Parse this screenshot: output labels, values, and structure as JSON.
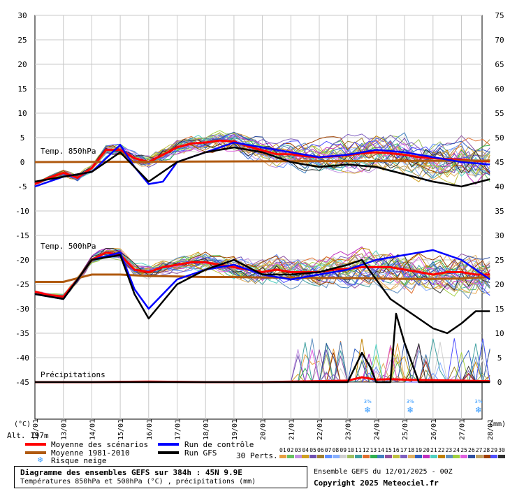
{
  "chart_data": {
    "type": "line",
    "left_axis": {
      "unit_label": "(°C)",
      "range": [
        -45,
        30
      ],
      "ticks": [
        30,
        25,
        20,
        15,
        10,
        5,
        0,
        -5,
        -10,
        -15,
        -20,
        -25,
        -30,
        -35,
        -40,
        -45
      ]
    },
    "right_axis": {
      "unit_label": "(mm)",
      "range": [
        0,
        75
      ],
      "ticks": [
        75,
        70,
        65,
        60,
        55,
        50,
        45,
        40,
        35,
        30,
        25,
        20,
        15,
        10,
        5,
        0
      ]
    },
    "x_dates": [
      "13/01",
      "14/01",
      "15/01",
      "16/01",
      "17/01",
      "18/01",
      "19/01",
      "20/01",
      "21/01",
      "22/01",
      "23/01",
      "24/01",
      "25/01",
      "26/01",
      "27/01",
      "28/01"
    ],
    "left_edge_date": "12/01",
    "panel_labels": {
      "t850": "Temp. 850hPa",
      "t500": "Temp. 500hPa",
      "precip": "Précipitations"
    },
    "grid": true,
    "series": [
      {
        "name": "Moyenne des scénarios",
        "panel": "t850",
        "color": "#ff0000",
        "x_days": [
          0,
          0.5,
          1,
          1.5,
          2,
          2.5,
          3,
          3.5,
          4,
          4.5,
          5,
          5.5,
          6,
          6.5,
          7,
          7.5,
          8,
          8.5,
          9,
          9.5,
          10,
          10.5,
          11,
          11.5,
          12,
          12.5,
          13,
          13.5,
          14,
          14.5,
          15,
          15.5,
          16
        ],
        "values": [
          -4.5,
          -3.2,
          -2.2,
          -3.2,
          -1.2,
          2.5,
          2.5,
          0.8,
          0,
          1.5,
          3,
          3.8,
          4,
          4.4,
          4.2,
          3.2,
          2.4,
          1.6,
          1.6,
          1.2,
          1,
          1.2,
          1.4,
          1.8,
          2,
          1.8,
          1.5,
          1,
          0.8,
          0.6,
          0.5,
          0.2,
          0.2
        ]
      },
      {
        "name": "Moyenne des scénarios",
        "panel": "t500",
        "color": "#ff0000",
        "x_days": [
          0,
          0.5,
          1,
          1.5,
          2,
          2.5,
          3,
          3.5,
          4,
          4.5,
          5,
          5.5,
          6,
          6.5,
          7,
          7.5,
          8,
          8.5,
          9,
          9.5,
          10,
          10.5,
          11,
          11.5,
          12,
          12.5,
          13,
          13.5,
          14,
          14.5,
          15,
          15.5,
          16
        ],
        "values": [
          -26.5,
          -27.2,
          -27.5,
          -24,
          -20,
          -18.5,
          -19,
          -22,
          -22.5,
          -21.5,
          -21,
          -20.5,
          -20.5,
          -21,
          -21.5,
          -22,
          -22.5,
          -22,
          -22.5,
          -22.5,
          -22.5,
          -22,
          -21.8,
          -21.5,
          -21.5,
          -21.5,
          -22,
          -22.5,
          -23,
          -22.5,
          -22.5,
          -23,
          -23
        ]
      },
      {
        "name": "Moyenne 1981-2010",
        "panel": "t850",
        "color": "#b05a10",
        "x_days": [
          0,
          16
        ],
        "values": [
          0,
          0.3
        ]
      },
      {
        "name": "Moyenne 1981-2010",
        "panel": "t500",
        "color": "#b05a10",
        "x_days": [
          0,
          1,
          2,
          3,
          4,
          5,
          6,
          7,
          8,
          9,
          10,
          11,
          12,
          13,
          14,
          15,
          16
        ],
        "values": [
          -24.5,
          -24.5,
          -23,
          -23,
          -23.3,
          -23.4,
          -23.5,
          -23.5,
          -23.6,
          -23.6,
          -23.7,
          -23.7,
          -23.8,
          -23.9,
          -23.9,
          -23.8,
          -23.5
        ]
      },
      {
        "name": "Run de contrôle",
        "panel": "t850",
        "color": "#0000ff",
        "x_days": [
          0,
          1,
          2,
          3,
          3.5,
          4,
          4.5,
          5,
          6,
          7,
          8,
          9,
          10,
          11,
          12,
          13,
          14,
          15,
          16
        ],
        "values": [
          -5,
          -3,
          -2,
          3.5,
          -1,
          -4.5,
          -4,
          0,
          2,
          4,
          3,
          2,
          1,
          1.5,
          2.5,
          2,
          1,
          0,
          -0.5
        ]
      },
      {
        "name": "Run de contrôle",
        "panel": "t500",
        "color": "#0000ff",
        "x_days": [
          0,
          1,
          2,
          3,
          3.5,
          4,
          5,
          6,
          7,
          8,
          9,
          10,
          11,
          12,
          13,
          14,
          15,
          16
        ],
        "values": [
          -27,
          -28,
          -20,
          -18.5,
          -26,
          -30,
          -24,
          -22,
          -21,
          -23,
          -24,
          -23,
          -22,
          -20,
          -19,
          -18,
          -20,
          -24
        ]
      },
      {
        "name": "Run GFS",
        "panel": "t850",
        "color": "#000000",
        "x_days": [
          0,
          1,
          2,
          3,
          4,
          5,
          6,
          7,
          8,
          9,
          10,
          11,
          12,
          13,
          14,
          15,
          16
        ],
        "values": [
          -4,
          -3,
          -2,
          2,
          -4,
          0,
          2,
          3,
          2,
          0,
          -1,
          -0.5,
          -1,
          -2.5,
          -4,
          -5,
          -3.5
        ]
      },
      {
        "name": "Run GFS",
        "panel": "t500",
        "color": "#000000",
        "x_days": [
          0,
          1,
          2,
          3,
          3.5,
          4,
          5,
          6,
          7,
          8,
          9,
          10,
          11,
          11.5,
          12,
          12.5,
          13,
          13.5,
          14,
          14.5,
          15,
          15.5,
          16
        ],
        "values": [
          -27,
          -28,
          -20,
          -19,
          -27,
          -32,
          -25,
          -22,
          -20,
          -23,
          -23,
          -22.5,
          -21,
          -20,
          -24,
          -28,
          -30,
          -32,
          -34,
          -35,
          -33,
          -30.5,
          -30.5
        ]
      },
      {
        "name": "Moyenne des scénarios",
        "panel": "precip",
        "color": "#ff0000",
        "x_days": [
          0,
          2,
          4,
          6,
          8,
          10,
          11,
          11.5,
          12,
          12.5,
          13,
          14,
          15,
          16
        ],
        "values": [
          0,
          0,
          0.1,
          0,
          0,
          0.2,
          0.3,
          1,
          0.5,
          0.6,
          0.5,
          0.4,
          0.3,
          0.2
        ]
      },
      {
        "name": "Run GFS",
        "panel": "precip",
        "color": "#000000",
        "x_days": [
          0,
          11,
          11.5,
          11.8,
          12,
          12.5,
          12.7,
          13,
          13.5,
          14,
          14.5,
          15,
          16
        ],
        "values": [
          0,
          0,
          6,
          3,
          0,
          0,
          14,
          8,
          0,
          0,
          0,
          0,
          0
        ]
      }
    ],
    "members_count": 30,
    "snow_risk_days": [
      11.7,
      13.2,
      15.6
    ],
    "snow_risk_label": "3%"
  },
  "legend": {
    "alt_label": "Alt. 197m",
    "items": [
      {
        "label": "Moyenne des scénarios",
        "color": "#ff0000"
      },
      {
        "label": "Moyenne 1981-2010",
        "color": "#b05a10"
      },
      {
        "label": "Run de contrôle",
        "color": "#0000ff"
      },
      {
        "label": "Run GFS",
        "color": "#000000"
      }
    ],
    "snow_label": "Risque neige",
    "perts_label": "30 Perts.",
    "pert_numbers": [
      "01",
      "02",
      "03",
      "04",
      "05",
      "06",
      "07",
      "08",
      "09",
      "10",
      "11",
      "12",
      "13",
      "14",
      "15",
      "16",
      "17",
      "18",
      "19",
      "20",
      "21",
      "22",
      "23",
      "24",
      "25",
      "26",
      "27",
      "28",
      "29",
      "30"
    ],
    "pert_colors": [
      "#e8a040",
      "#68c060",
      "#c090e0",
      "#d0a020",
      "#7050b0",
      "#a08030",
      "#6090ff",
      "#88b0ff",
      "#d0d0d0",
      "#a0c060",
      "#40a0a0",
      "#e07030",
      "#30b050",
      "#4080c0",
      "#9050a0",
      "#c0c040",
      "#8060c0",
      "#e0b060",
      "#3060c0",
      "#c030c0",
      "#50d0c0",
      "#c08000",
      "#6090c0",
      "#a0d040",
      "#e060e0",
      "#3050a0",
      "#c0a060",
      "#a04000",
      "#5050ff",
      "#303030"
    ]
  },
  "footer": {
    "title_line": "Diagramme des ensembles GEFS sur 384h : 45N 9.9E",
    "subtitle_line": "Températures 850hPa et 500hPa (°C) , précipitations (mm)",
    "run_info": "Ensemble GEFS du 12/01/2025 - 00Z",
    "copyright": "Copyright 2025 Meteociel.fr"
  }
}
